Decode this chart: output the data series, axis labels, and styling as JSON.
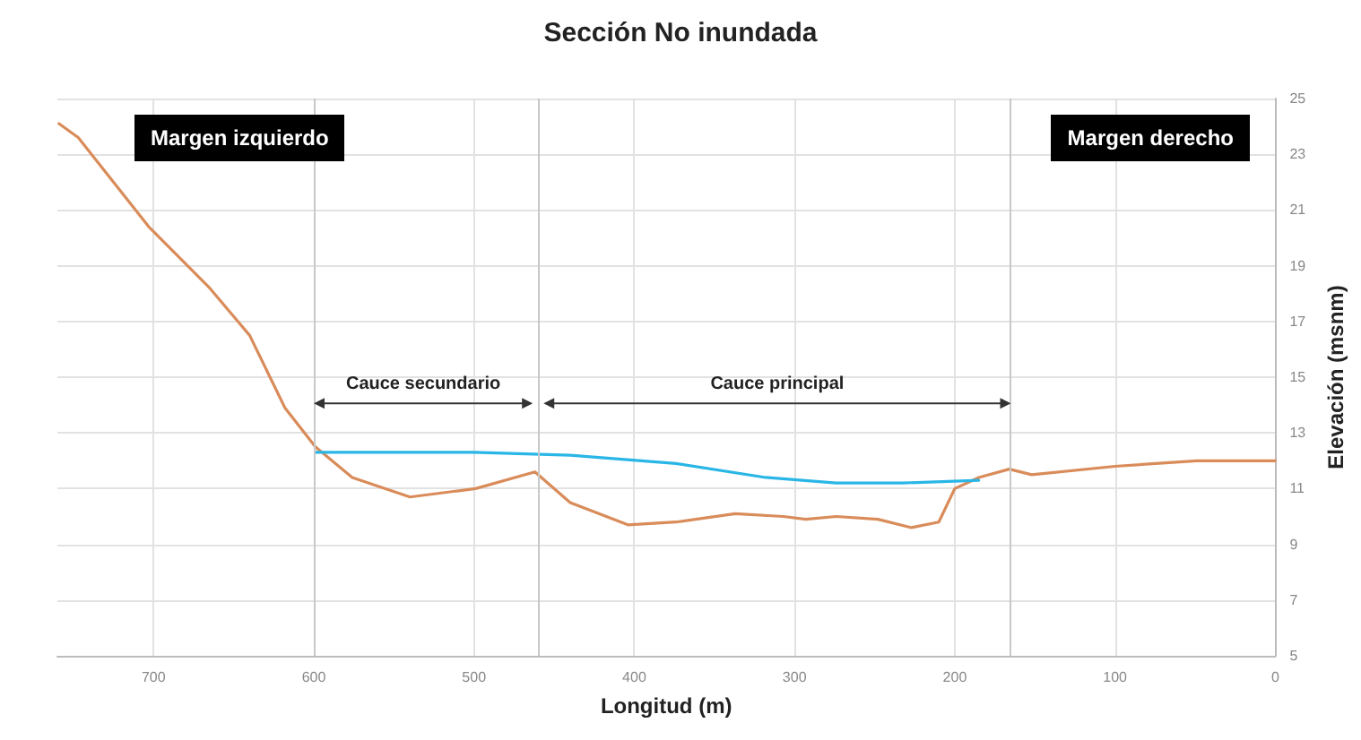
{
  "chart_data": {
    "type": "line",
    "title": "Sección No inundada",
    "xlabel": "Longitud (m)",
    "ylabel": "Elevación (msnm)",
    "xlim": [
      760,
      0
    ],
    "xticks": [
      0,
      100,
      200,
      300,
      400,
      500,
      600,
      700
    ],
    "ylim": [
      5,
      25
    ],
    "yticks": [
      5,
      7,
      9,
      11,
      13,
      15,
      17,
      19,
      21,
      23,
      25
    ],
    "grid": true,
    "marker": "none",
    "line_style": "solid",
    "series": [
      {
        "color": "#d98c5a",
        "x": [
          759,
          747,
          703,
          665,
          640,
          618,
          599,
          576,
          540,
          499,
          462,
          440,
          404,
          374,
          337,
          307,
          293,
          274,
          248,
          227,
          210,
          200,
          185,
          166,
          152,
          100,
          49,
          0
        ],
        "values": [
          24.1,
          23.6,
          20.4,
          18.2,
          16.5,
          13.9,
          12.5,
          11.4,
          10.7,
          11.0,
          11.6,
          10.5,
          9.7,
          9.8,
          10.1,
          10.0,
          9.9,
          10.0,
          9.9,
          9.6,
          9.8,
          11.0,
          11.4,
          11.7,
          11.5,
          11.8,
          12.0,
          12.0
        ]
      },
      {
        "color": "#29b6e6",
        "x": [
          599,
          500,
          440,
          374,
          318,
          274,
          233,
          185
        ],
        "values": [
          12.3,
          12.3,
          12.2,
          11.9,
          11.4,
          11.2,
          11.2,
          11.3
        ]
      }
    ],
    "ref_lines": [
      {
        "axis": "x",
        "value": 600,
        "color": "#c8c8c8"
      },
      {
        "axis": "x",
        "value": 460,
        "color": "#c8c8c8"
      },
      {
        "axis": "x",
        "value": 165,
        "color": "#c8c8c8"
      }
    ],
    "annotations": [
      "Margen izquierdo",
      "Margen derecho",
      "Cauce secundario",
      "Cauce principal"
    ]
  }
}
